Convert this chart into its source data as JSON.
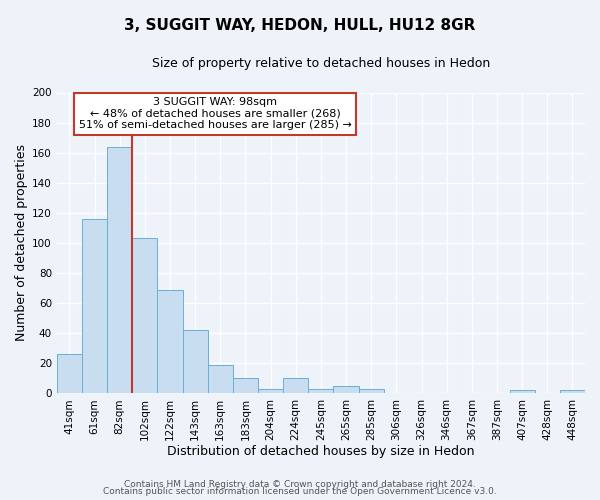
{
  "title": "3, SUGGIT WAY, HEDON, HULL, HU12 8GR",
  "subtitle": "Size of property relative to detached houses in Hedon",
  "xlabel": "Distribution of detached houses by size in Hedon",
  "ylabel": "Number of detached properties",
  "bar_labels": [
    "41sqm",
    "61sqm",
    "82sqm",
    "102sqm",
    "122sqm",
    "143sqm",
    "163sqm",
    "183sqm",
    "204sqm",
    "224sqm",
    "245sqm",
    "265sqm",
    "285sqm",
    "306sqm",
    "326sqm",
    "346sqm",
    "367sqm",
    "387sqm",
    "407sqm",
    "428sqm",
    "448sqm"
  ],
  "bar_values": [
    26,
    116,
    164,
    103,
    69,
    42,
    19,
    10,
    3,
    10,
    3,
    5,
    3,
    0,
    0,
    0,
    0,
    0,
    2,
    0,
    2
  ],
  "bar_color": "#c9ddf0",
  "bar_edge_color": "#6aaed6",
  "background_color": "#eef2f9",
  "grid_color": "#ffffff",
  "ylim": [
    0,
    200
  ],
  "yticks": [
    0,
    20,
    40,
    60,
    80,
    100,
    120,
    140,
    160,
    180,
    200
  ],
  "property_label": "3 SUGGIT WAY: 98sqm",
  "annotation_line1": "← 48% of detached houses are smaller (268)",
  "annotation_line2": "51% of semi-detached houses are larger (285) →",
  "red_line_after_index": 2,
  "red_line_color": "#c0392b",
  "annotation_box_color": "#ffffff",
  "annotation_box_edge": "#c0392b",
  "footer_line1": "Contains HM Land Registry data © Crown copyright and database right 2024.",
  "footer_line2": "Contains public sector information licensed under the Open Government Licence v3.0.",
  "title_fontsize": 11,
  "subtitle_fontsize": 9,
  "axis_label_fontsize": 9,
  "tick_fontsize": 7.5,
  "annotation_fontsize": 8,
  "footer_fontsize": 6.5
}
